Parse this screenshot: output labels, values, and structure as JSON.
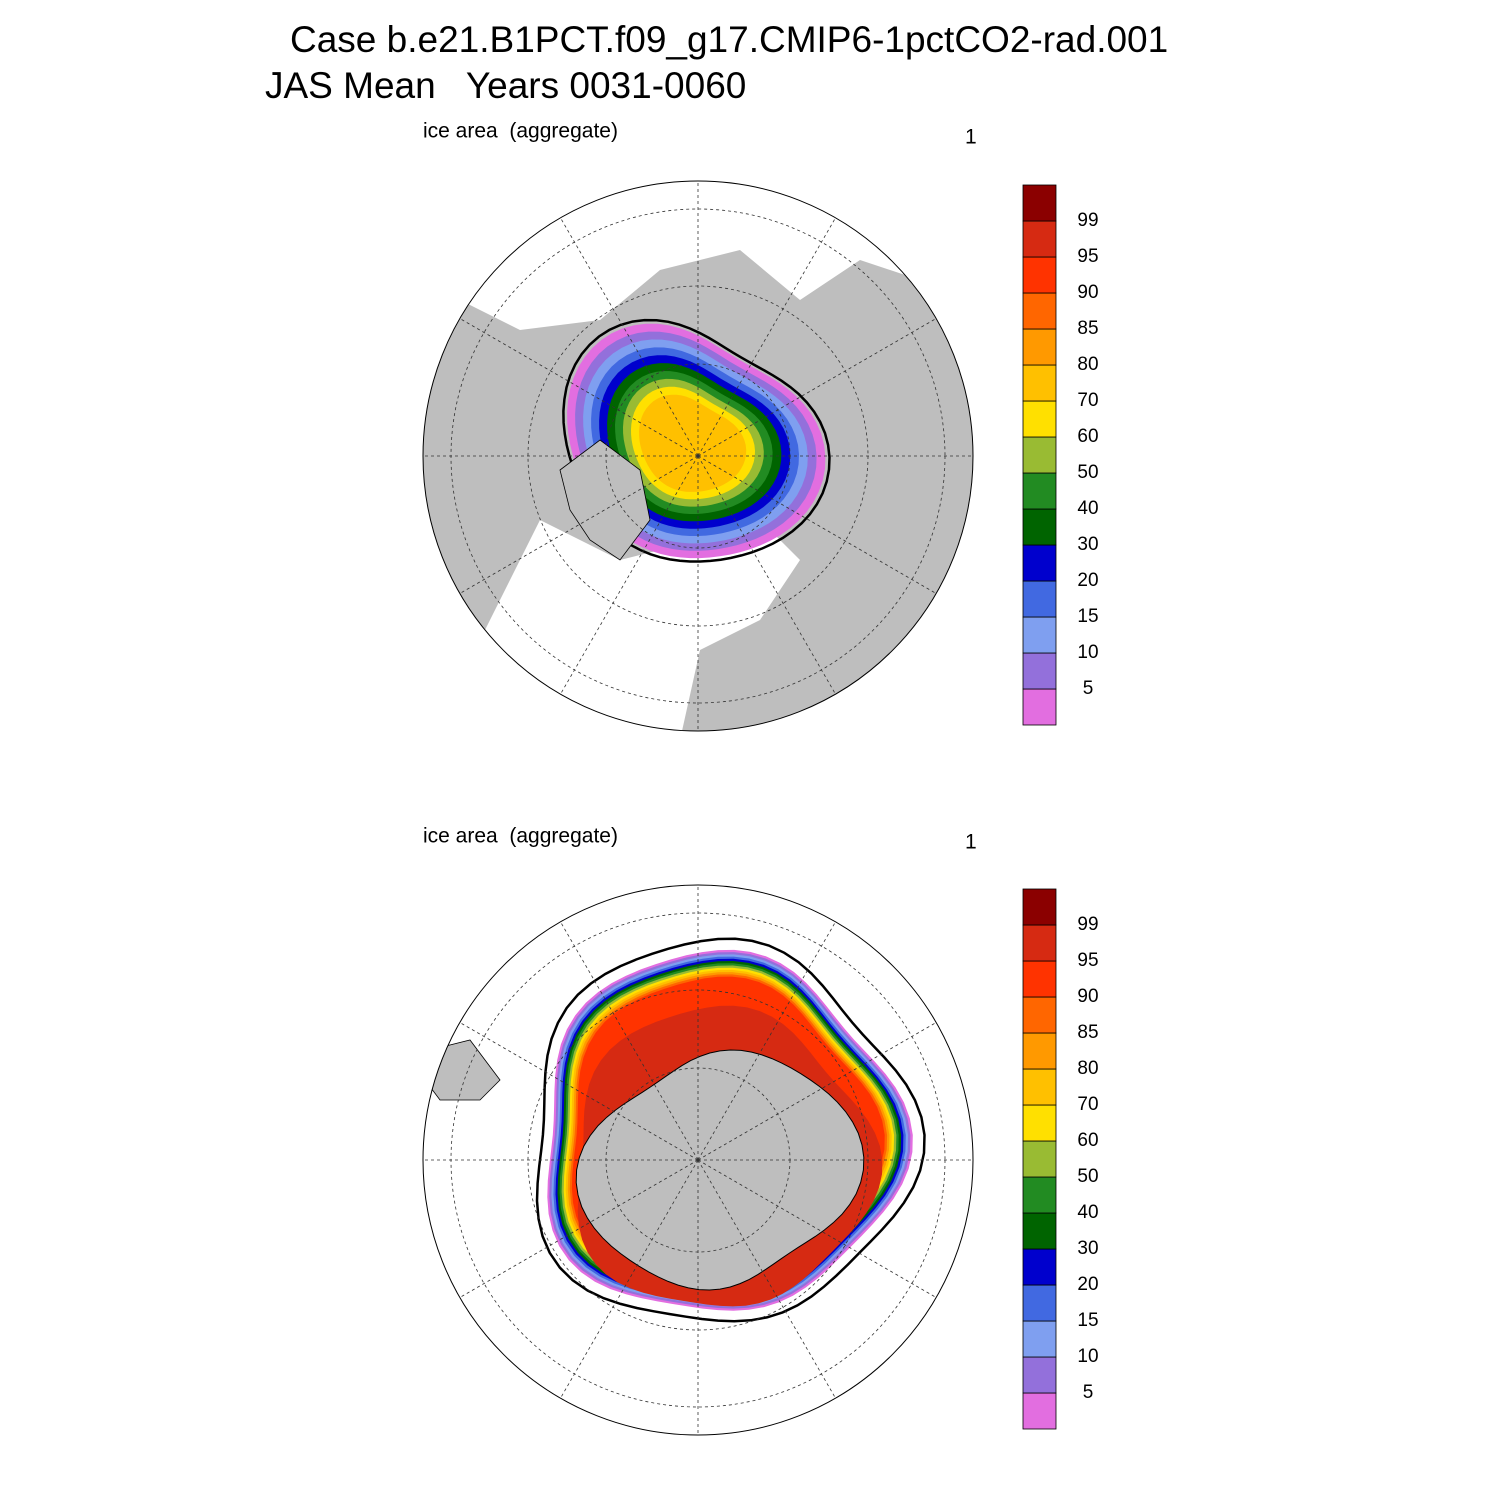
{
  "header": {
    "title": "Case b.e21.B1PCT.f09_g17.CMIP6-1pctCO2-rad.001",
    "subtitle": "JAS Mean   Years 0031-0060"
  },
  "panels": [
    {
      "label": "ice area  (aggregate)",
      "corner": "1",
      "colorbar": {
        "levels": [
          5,
          10,
          15,
          20,
          30,
          40,
          50,
          60,
          70,
          80,
          85,
          90,
          95,
          99
        ],
        "colors": [
          "#e26ee0",
          "#9370db",
          "#7f9ff0",
          "#4169e1",
          "#0000cd",
          "#006400",
          "#228b22",
          "#99bb33",
          "#ffe000",
          "#ffc000",
          "#ff9900",
          "#ff6600",
          "#ff3300",
          "#d62a12",
          "#8b0000"
        ]
      }
    },
    {
      "label": "ice area  (aggregate)",
      "corner": "1",
      "colorbar": {
        "levels": [
          5,
          10,
          15,
          20,
          30,
          40,
          50,
          60,
          70,
          80,
          85,
          90,
          95,
          99
        ],
        "colors": [
          "#e26ee0",
          "#9370db",
          "#7f9ff0",
          "#4169e1",
          "#0000cd",
          "#006400",
          "#228b22",
          "#99bb33",
          "#ffe000",
          "#ffc000",
          "#ff9900",
          "#ff6600",
          "#ff3300",
          "#d62a12",
          "#8b0000"
        ]
      }
    }
  ]
}
